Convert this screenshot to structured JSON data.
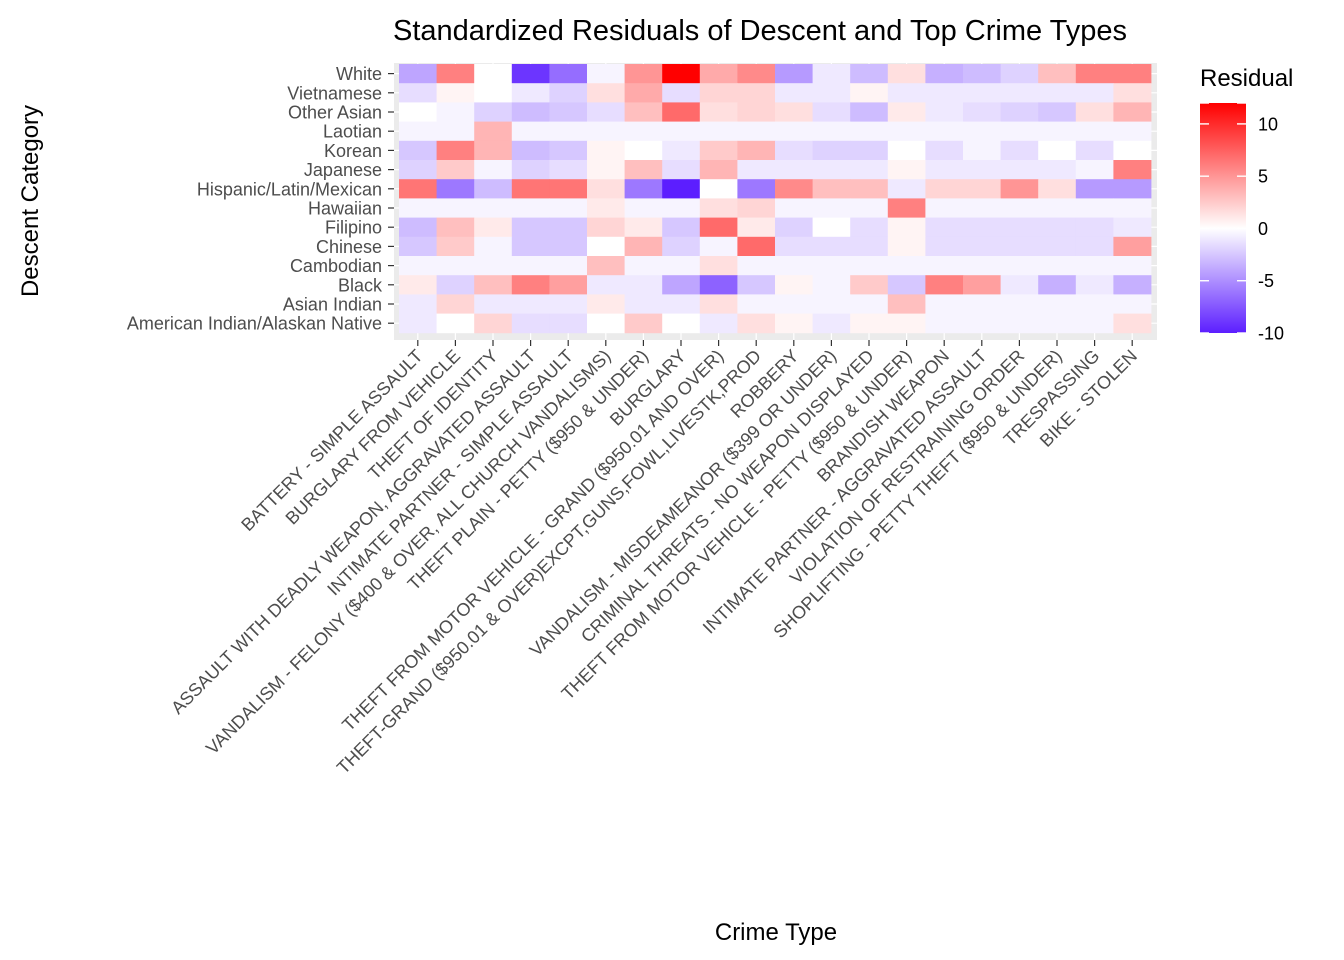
{
  "chart_data": {
    "type": "heatmap",
    "title": "Standardized Residuals of Descent and Top Crime Types",
    "xlabel": "Crime Type",
    "ylabel": "Descent Category",
    "x_categories": [
      "BATTERY - SIMPLE ASSAULT",
      "BURGLARY FROM VEHICLE",
      "THEFT OF IDENTITY",
      "ASSAULT WITH DEADLY WEAPON, AGGRAVATED ASSAULT",
      "INTIMATE PARTNER - SIMPLE ASSAULT",
      "VANDALISM - FELONY ($400 & OVER, ALL CHURCH VANDALISMS)",
      "THEFT PLAIN - PETTY ($950 & UNDER)",
      "BURGLARY",
      "THEFT FROM MOTOR VEHICLE - GRAND ($950.01 AND OVER)",
      "THEFT-GRAND ($950.01 & OVER)EXCPT,GUNS,FOWL,LIVESTK,PROD",
      "ROBBERY",
      "VANDALISM - MISDEAMEANOR ($399 OR UNDER)",
      "CRIMINAL THREATS - NO WEAPON DISPLAYED",
      "THEFT FROM MOTOR VEHICLE - PETTY ($950 & UNDER)",
      "BRANDISH WEAPON",
      "INTIMATE PARTNER - AGGRAVATED ASSAULT",
      "VIOLATION OF RESTRAINING ORDER",
      "SHOPLIFTING - PETTY THEFT ($950 & UNDER)",
      "TRESPASSING",
      "BIKE - STOLEN"
    ],
    "y_categories": [
      "White",
      "Vietnamese",
      "Other Asian",
      "Laotian",
      "Korean",
      "Japanese",
      "Hispanic/Latin/Mexican",
      "Hawaiian",
      "Filipino",
      "Chinese",
      "Cambodian",
      "Black",
      "Asian Indian",
      "American Indian/Alaskan Native"
    ],
    "values": [
      [
        -4,
        6,
        0,
        -9,
        -6.5,
        -0.5,
        5,
        12,
        4,
        5.5,
        -4.5,
        -1,
        -3,
        1.5,
        -3.5,
        -3,
        -2,
        3,
        6,
        6
      ],
      [
        -1.5,
        0.5,
        0,
        -1,
        -2,
        1.5,
        4,
        -1.5,
        2,
        2,
        -1,
        -1,
        0.5,
        -1,
        -1,
        -1,
        -1,
        -1,
        -1,
        1.5
      ],
      [
        0,
        -0.5,
        -2,
        -3,
        -2.5,
        -1.5,
        3,
        7,
        1.5,
        2,
        1.5,
        -1.5,
        -3,
        1,
        -1,
        -1.5,
        -2,
        -2.5,
        1.5,
        3.5
      ],
      [
        -0.5,
        -0.5,
        3.5,
        -0.5,
        -0.5,
        -0.5,
        -0.5,
        -0.5,
        -0.5,
        -0.5,
        -0.5,
        -0.5,
        -0.5,
        -0.5,
        -0.5,
        -0.5,
        -0.5,
        -0.5,
        -0.5,
        -0.5
      ],
      [
        -2.5,
        6,
        3.5,
        -3,
        -2.5,
        0.5,
        0,
        -1,
        2.5,
        3.5,
        -1.5,
        -2,
        -2,
        0,
        -1.5,
        -0.5,
        -1.5,
        0,
        -1.5,
        0
      ],
      [
        -2,
        2.5,
        -0.5,
        -2,
        -1.5,
        0.5,
        3,
        -1.5,
        3.5,
        -1,
        -1,
        -1,
        -1,
        0.5,
        -1,
        -1,
        -1,
        -1,
        -0.5,
        6
      ],
      [
        6.5,
        -6,
        -3,
        6.5,
        6.5,
        1.5,
        -6,
        -10,
        0,
        -6,
        5.5,
        3,
        3,
        -1,
        2,
        2,
        5,
        1.5,
        -4.5,
        -4.5
      ],
      [
        -0.5,
        -0.5,
        -0.5,
        -0.5,
        -0.5,
        1,
        -0.5,
        -0.5,
        1.5,
        2,
        -0.5,
        -0.5,
        -0.5,
        6,
        -0.5,
        -0.5,
        -0.5,
        -0.5,
        -0.5,
        -0.5
      ],
      [
        -3,
        3,
        1,
        -2.5,
        -2.5,
        2,
        1,
        -2.5,
        7,
        1,
        -2,
        0,
        -1.5,
        0.5,
        -1.5,
        -1.5,
        -1.5,
        -1.5,
        -1.5,
        -1
      ],
      [
        -2.5,
        2.5,
        -0.5,
        -2.5,
        -2.5,
        0,
        3.5,
        -2,
        -0.5,
        7,
        -1.5,
        -1.5,
        -1.5,
        0.5,
        -1.5,
        -1.5,
        -1.5,
        -1.5,
        -1.5,
        4.5
      ],
      [
        -0.5,
        -0.5,
        -0.5,
        -0.5,
        -0.5,
        3,
        -0.5,
        -0.5,
        1.5,
        -0.5,
        -0.5,
        -0.5,
        -0.5,
        -0.5,
        -0.5,
        -0.5,
        -0.5,
        -0.5,
        -0.5,
        -0.5
      ],
      [
        1,
        -2,
        3,
        6,
        4.5,
        -1,
        -1,
        -4,
        -7,
        -2.5,
        0.5,
        -0.5,
        2.5,
        -2.5,
        6,
        4.5,
        -1,
        -3.5,
        -1,
        -3.5
      ],
      [
        -1,
        2,
        -1,
        -1,
        -1,
        1,
        -1,
        -1,
        1.5,
        -0.5,
        -0.5,
        -0.5,
        -0.5,
        3,
        -0.5,
        -0.5,
        -0.5,
        -0.5,
        -0.5,
        -0.5
      ],
      [
        -1,
        0,
        2,
        -1.5,
        -1.5,
        0,
        2.5,
        0,
        -1,
        1.5,
        0.5,
        -1,
        0.5,
        0.5,
        -0.5,
        -0.5,
        -0.5,
        -0.5,
        -0.5,
        1.5
      ]
    ],
    "color_scale": {
      "low": "#5c1eff",
      "mid": "#ffffff",
      "high": "#ff0000",
      "min": -10,
      "max": 12
    },
    "legend": {
      "title": "Residual",
      "ticks": [
        12,
        10,
        5,
        0,
        -5,
        -10
      ],
      "tick_labels": [
        "",
        "10",
        "5",
        "0",
        "-5",
        "-10"
      ],
      "placement": "right"
    },
    "grid": true
  }
}
